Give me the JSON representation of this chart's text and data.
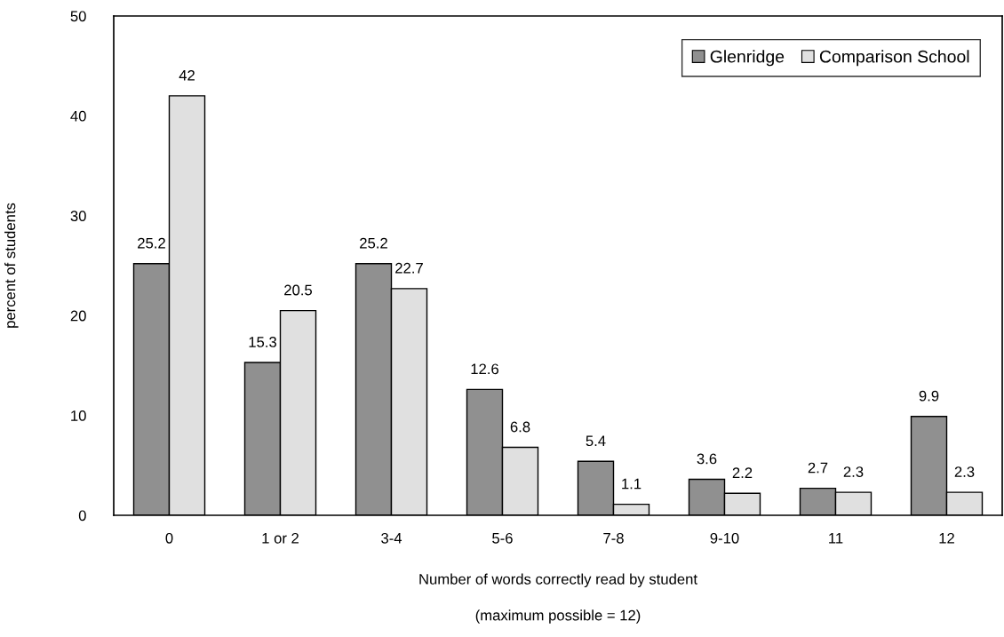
{
  "chart_data": {
    "type": "bar",
    "categories": [
      "0",
      "1 or 2",
      "3-4",
      "5-6",
      "7-8",
      "9-10",
      "11",
      "12"
    ],
    "series": [
      {
        "name": "Glenridge",
        "color": "#909090",
        "values": [
          25.2,
          15.3,
          25.2,
          12.6,
          5.4,
          3.6,
          2.7,
          9.9
        ]
      },
      {
        "name": "Comparison School",
        "color": "#e0e0e0",
        "values": [
          42,
          20.5,
          22.7,
          6.8,
          1.1,
          2.2,
          2.3,
          2.3
        ]
      }
    ],
    "xlabel": "Number of words correctly read by student",
    "ylabel": "percent of students",
    "annotations": [
      "(maximum possible = 12)"
    ],
    "ylim": [
      0,
      50
    ],
    "yticks": [
      0,
      10,
      20,
      30,
      40,
      50
    ],
    "data_labels": true,
    "legend": "top right",
    "grid": false
  }
}
